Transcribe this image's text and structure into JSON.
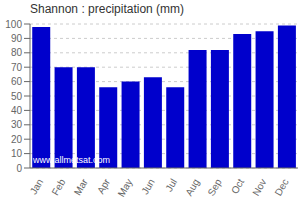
{
  "chart_data": {
    "type": "bar",
    "title": "Shannon : precipitation (mm)",
    "categories": [
      "Jan",
      "Feb",
      "Mar",
      "Apr",
      "May",
      "Jun",
      "Jul",
      "Aug",
      "Sep",
      "Oct",
      "Nov",
      "Dec"
    ],
    "values": [
      98,
      70,
      70,
      56,
      60,
      63,
      56,
      82,
      82,
      93,
      95,
      99
    ],
    "color": "#0000CC",
    "ylim": [
      0,
      100
    ],
    "yticks": [
      0,
      10,
      20,
      30,
      40,
      50,
      60,
      70,
      80,
      90,
      100
    ],
    "grid": true,
    "annotation": "www.allmetsat.com"
  }
}
